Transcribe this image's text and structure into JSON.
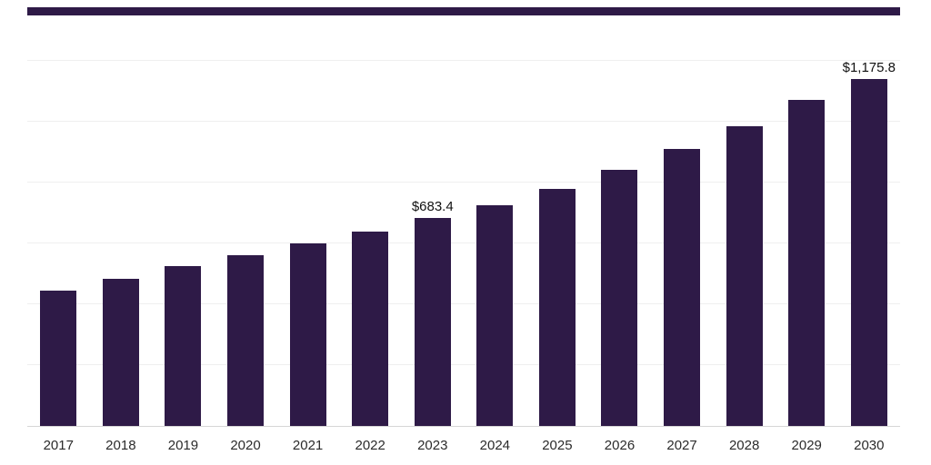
{
  "top_bar": {
    "color": "#2e1a47"
  },
  "chart_data": {
    "type": "bar",
    "title": "",
    "xlabel": "",
    "ylabel": "",
    "categories": [
      "2017",
      "2018",
      "2019",
      "2020",
      "2021",
      "2022",
      "2023",
      "2024",
      "2025",
      "2026",
      "2027",
      "2028",
      "2029",
      "2030"
    ],
    "values": [
      445,
      485,
      525,
      560,
      600,
      640,
      683.4,
      726,
      780,
      842,
      910,
      985,
      1071,
      1175.8
    ],
    "value_labels": [
      "",
      "",
      "",
      "",
      "",
      "",
      "$683.4",
      "",
      "",
      "",
      "",
      "",
      "",
      "$1,175.8"
    ],
    "ylim": [
      0,
      1200
    ],
    "gridline_step": 200,
    "grid": true,
    "legend_position": "none",
    "bar_color": "#2e1a47",
    "gridline_color": "#efefef",
    "axis_line_color": "#d6d6d6",
    "tick_label_color": "#2b2b2b",
    "value_label_color": "#111111"
  }
}
